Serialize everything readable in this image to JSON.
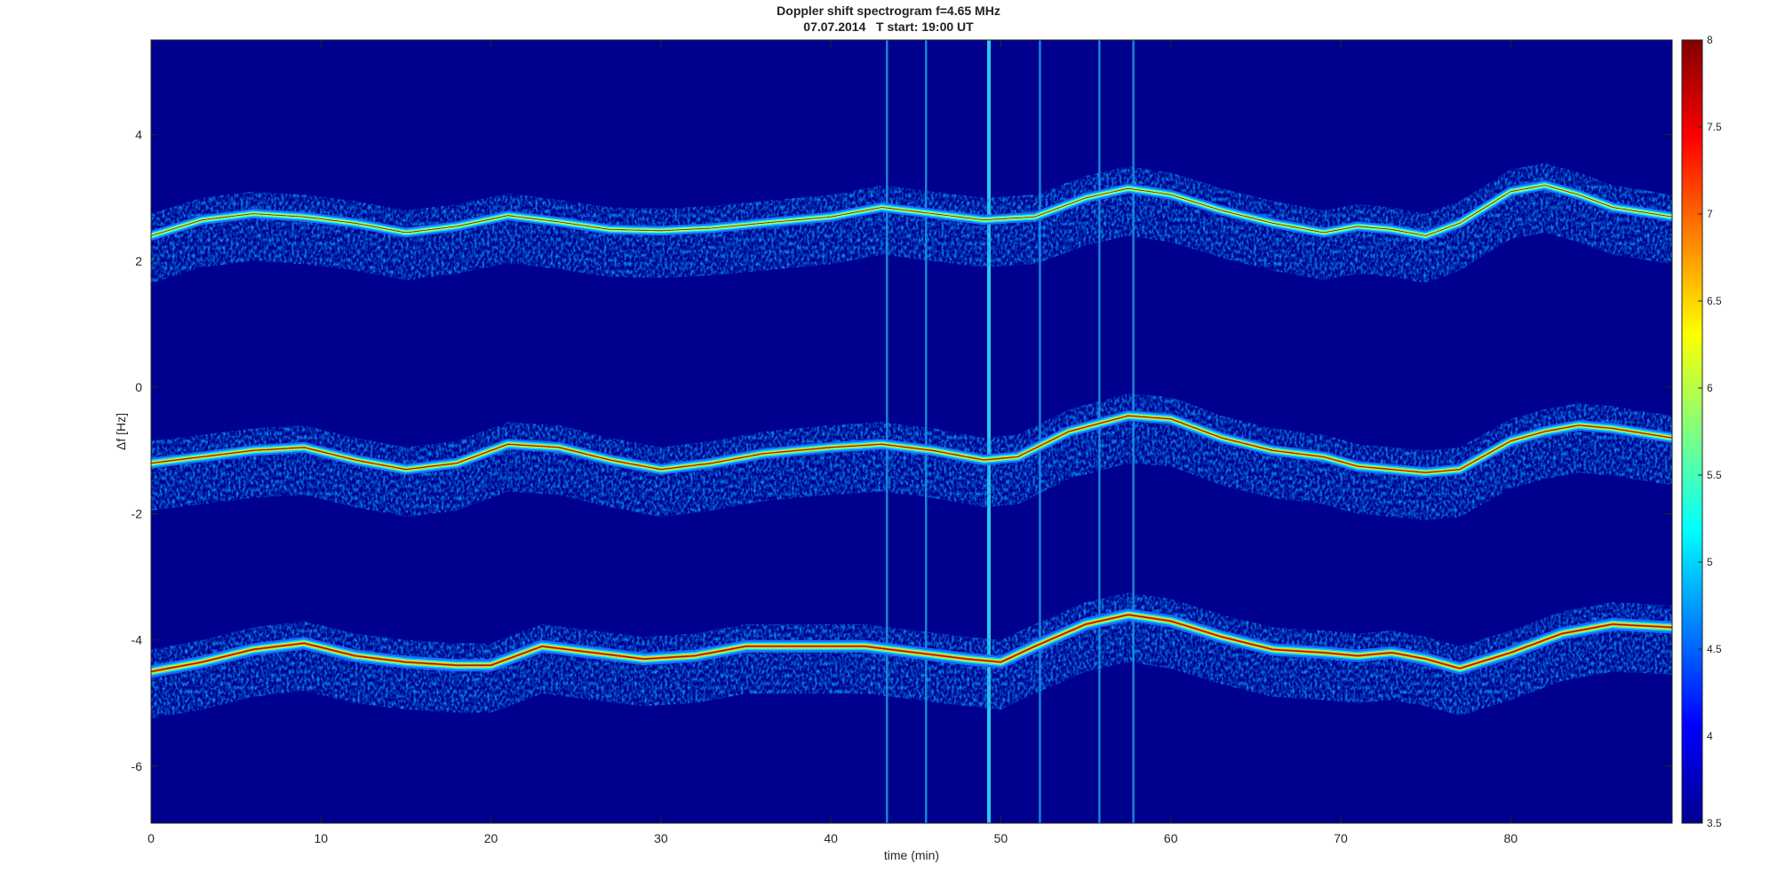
{
  "chart_data": {
    "type": "heatmap",
    "title": "Doppler shift spectrogram f=4.65 MHz",
    "subtitle": "07.07.2014   T start: 19:00 UT",
    "xlabel": "time (min)",
    "ylabel": "Δf [Hz]",
    "xlim": [
      0,
      89.5
    ],
    "ylim": [
      -6.9,
      5.5
    ],
    "x_ticks": [
      0,
      10,
      20,
      30,
      40,
      50,
      60,
      70,
      80
    ],
    "x_tick_labels": [
      "0",
      "10",
      "20",
      "30",
      "40",
      "50",
      "60",
      "70",
      "80"
    ],
    "y_ticks": [
      4,
      2,
      0,
      -2,
      -4,
      -6
    ],
    "y_tick_labels": [
      "4",
      "2",
      "0",
      "-2",
      "-4",
      "-6"
    ],
    "colorbar": {
      "range": [
        3.5,
        8
      ],
      "ticks": [
        8,
        7.5,
        7,
        6.5,
        6,
        5.5,
        5,
        4.5,
        4,
        3.5
      ],
      "tick_labels": [
        "8",
        "7.5",
        "7",
        "6.5",
        "6",
        "5.5",
        "5",
        "4.5",
        "4",
        "3.5"
      ],
      "colormap": "jet"
    },
    "background_color": "#00008f",
    "traces": [
      {
        "time": [
          0,
          3,
          6,
          9,
          12,
          15,
          18,
          21,
          24,
          27,
          30,
          33,
          36,
          40,
          43,
          46,
          49,
          52,
          55,
          57.5,
          60,
          63,
          66,
          69,
          71,
          73,
          75,
          77,
          80,
          82,
          84,
          86,
          89.5
        ],
        "df": [
          2.4,
          2.65,
          2.75,
          2.7,
          2.6,
          2.45,
          2.55,
          2.72,
          2.62,
          2.5,
          2.48,
          2.52,
          2.6,
          2.7,
          2.85,
          2.75,
          2.65,
          2.7,
          3.0,
          3.15,
          3.05,
          2.8,
          2.6,
          2.45,
          2.55,
          2.5,
          2.4,
          2.6,
          3.1,
          3.2,
          3.05,
          2.85,
          2.7
        ]
      },
      {
        "time": [
          0,
          3,
          6,
          9,
          12,
          15,
          18,
          21,
          24,
          27,
          30,
          33,
          36,
          40,
          43,
          46,
          49,
          51,
          54,
          57.5,
          60,
          63,
          66,
          69,
          71,
          73,
          75,
          77,
          80,
          82,
          84,
          86,
          89.5
        ],
        "df": [
          -1.2,
          -1.1,
          -1.0,
          -0.95,
          -1.15,
          -1.3,
          -1.2,
          -0.9,
          -0.95,
          -1.15,
          -1.3,
          -1.2,
          -1.05,
          -0.95,
          -0.9,
          -1.0,
          -1.15,
          -1.1,
          -0.7,
          -0.45,
          -0.5,
          -0.8,
          -1.0,
          -1.1,
          -1.25,
          -1.3,
          -1.35,
          -1.3,
          -0.85,
          -0.7,
          -0.6,
          -0.65,
          -0.8
        ]
      },
      {
        "time": [
          0,
          3,
          6,
          9,
          12,
          15,
          18,
          20,
          23,
          26,
          29,
          32,
          35,
          38,
          42,
          45,
          48,
          50,
          52,
          55,
          57.5,
          60,
          63,
          66,
          69,
          71,
          73,
          75,
          77,
          80,
          83,
          86,
          89.5
        ],
        "df": [
          -4.5,
          -4.35,
          -4.15,
          -4.05,
          -4.25,
          -4.35,
          -4.4,
          -4.4,
          -4.1,
          -4.2,
          -4.3,
          -4.25,
          -4.1,
          -4.1,
          -4.1,
          -4.2,
          -4.3,
          -4.35,
          -4.1,
          -3.75,
          -3.6,
          -3.7,
          -3.95,
          -4.15,
          -4.2,
          -4.25,
          -4.2,
          -4.3,
          -4.45,
          -4.2,
          -3.9,
          -3.75,
          -3.8
        ]
      }
    ],
    "vertical_interference_lines_min": [
      43.3,
      45.6,
      49.3,
      52.3,
      55.8,
      57.8
    ]
  }
}
